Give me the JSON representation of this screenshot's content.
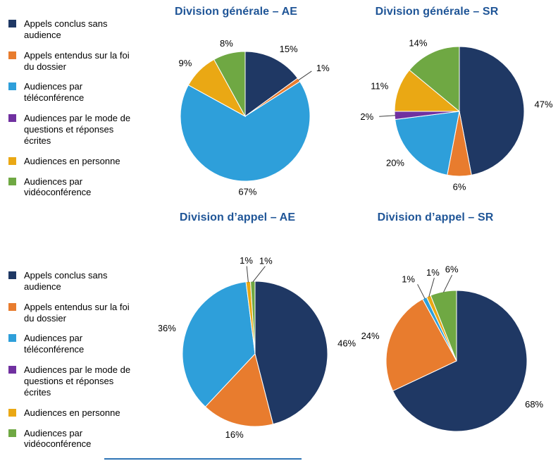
{
  "legend": {
    "position": "left",
    "items": [
      {
        "label": "Appels conclus sans audience",
        "color": "#1F3864"
      },
      {
        "label": "Appels entendus sur la foi du dossier",
        "color": "#E87C2E"
      },
      {
        "label": "Audiences par téléconférence",
        "color": "#2E9FDA"
      },
      {
        "label": "Audiences par le mode de questions et réponses écrites",
        "color": "#7030A0"
      },
      {
        "label": "Audiences en personne",
        "color": "#EAA814"
      },
      {
        "label": "Audiences par vidéoconférence",
        "color": "#6FA843"
      }
    ]
  },
  "chart_data": [
    {
      "type": "pie",
      "title": "Division générale – AE",
      "value_unit": "%",
      "start_angle": "12-oclock",
      "direction": "clockwise",
      "slices": [
        {
          "label": "Appels conclus sans audience",
          "value": 15
        },
        {
          "label": "Appels entendus sur la foi du dossier",
          "value": 1
        },
        {
          "label": "Audiences par téléconférence",
          "value": 67
        },
        {
          "label": "Audiences en personne",
          "value": 9
        },
        {
          "label": "Audiences par vidéoconférence",
          "value": 8
        }
      ]
    },
    {
      "type": "pie",
      "title": "Division générale – SR",
      "value_unit": "%",
      "start_angle": "12-oclock",
      "direction": "clockwise",
      "slices": [
        {
          "label": "Appels conclus sans audience",
          "value": 47
        },
        {
          "label": "Appels entendus sur la foi du dossier",
          "value": 6
        },
        {
          "label": "Audiences par téléconférence",
          "value": 20
        },
        {
          "label": "Audiences par le mode de questions et réponses écrites",
          "value": 2
        },
        {
          "label": "Audiences en personne",
          "value": 11
        },
        {
          "label": "Audiences par vidéoconférence",
          "value": 14
        }
      ]
    },
    {
      "type": "pie",
      "title": "Division d’appel – AE",
      "value_unit": "%",
      "start_angle": "12-oclock",
      "direction": "clockwise",
      "slices": [
        {
          "label": "Appels conclus sans audience",
          "value": 46
        },
        {
          "label": "Appels entendus sur la foi du dossier",
          "value": 16
        },
        {
          "label": "Audiences par téléconférence",
          "value": 36
        },
        {
          "label": "Audiences en personne",
          "value": 1
        },
        {
          "label": "Audiences par vidéoconférence",
          "value": 1
        }
      ]
    },
    {
      "type": "pie",
      "title": "Division d’appel – SR",
      "value_unit": "%",
      "start_angle": "12-oclock",
      "direction": "clockwise",
      "slices": [
        {
          "label": "Appels conclus sans audience",
          "value": 68
        },
        {
          "label": "Appels entendus sur la foi du dossier",
          "value": 24
        },
        {
          "label": "Audiences par téléconférence",
          "value": 1
        },
        {
          "label": "Audiences en personne",
          "value": 1
        },
        {
          "label": "Audiences par vidéoconférence",
          "value": 6
        }
      ]
    }
  ],
  "style": {
    "title_color": "#1F5597",
    "label_color": "#000000",
    "rule_color": "#2E74B5"
  }
}
